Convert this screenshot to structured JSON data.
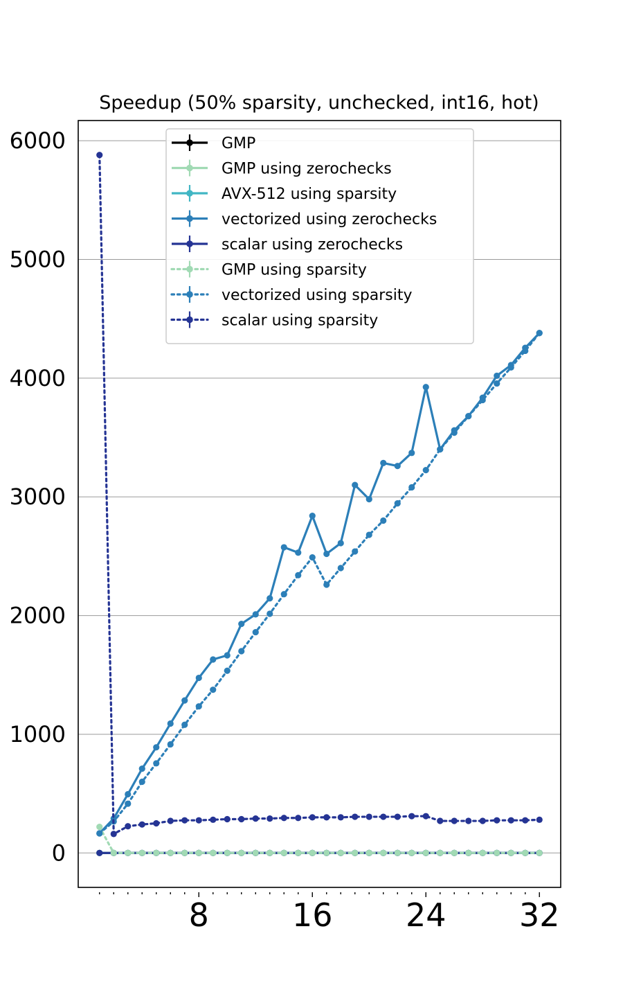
{
  "chart_data": {
    "type": "line",
    "title": "Speedup (50% sparsity, unchecked, int16, hot)",
    "xlabel": "",
    "ylabel": "",
    "xlim": [
      -0.5,
      33.5
    ],
    "ylim": [
      -290,
      6170
    ],
    "x": [
      1,
      2,
      3,
      4,
      5,
      6,
      7,
      8,
      9,
      10,
      11,
      12,
      13,
      14,
      15,
      16,
      17,
      18,
      19,
      20,
      21,
      22,
      23,
      24,
      25,
      26,
      27,
      28,
      29,
      30,
      31,
      32
    ],
    "xticks_major": [
      8,
      16,
      24,
      32
    ],
    "xticks_labels": [
      "8",
      "16",
      "24",
      "32"
    ],
    "yticks": [
      0,
      1000,
      2000,
      3000,
      4000,
      5000,
      6000
    ],
    "yticks_labels": [
      "0",
      "1000",
      "2000",
      "3000",
      "4000",
      "5000",
      "6000"
    ],
    "grid": "horizontal",
    "legend_position": "top-center",
    "series": [
      {
        "name": "GMP",
        "color": "#000000",
        "style": "solid",
        "values": [
          0,
          0,
          0,
          0,
          0,
          0,
          0,
          0,
          0,
          0,
          0,
          0,
          0,
          0,
          0,
          0,
          0,
          0,
          0,
          0,
          0,
          0,
          0,
          0,
          0,
          0,
          0,
          0,
          0,
          0,
          0,
          0
        ]
      },
      {
        "name": "GMP using zerochecks",
        "color": "#a1dab4",
        "style": "solid",
        "values": [
          0,
          0,
          0,
          0,
          0,
          0,
          0,
          0,
          0,
          0,
          0,
          0,
          0,
          0,
          0,
          0,
          0,
          0,
          0,
          0,
          0,
          0,
          0,
          0,
          0,
          0,
          0,
          0,
          0,
          0,
          0,
          0
        ]
      },
      {
        "name": "AVX-512 using sparsity",
        "color": "#41b6c4",
        "style": "solid",
        "values": [
          0,
          0,
          0,
          0,
          0,
          0,
          0,
          0,
          0,
          0,
          0,
          0,
          0,
          0,
          0,
          0,
          0,
          0,
          0,
          0,
          0,
          0,
          0,
          0,
          0,
          0,
          0,
          0,
          0,
          0,
          0,
          0
        ]
      },
      {
        "name": "vectorized using zerochecks",
        "color": "#2c7fb8",
        "style": "solid",
        "values": [
          165,
          290,
          495,
          710,
          890,
          1090,
          1285,
          1475,
          1630,
          1665,
          1930,
          2010,
          2145,
          2575,
          2530,
          2840,
          2520,
          2610,
          3100,
          2980,
          3285,
          3260,
          3370,
          3925,
          3400,
          3560,
          3680,
          3835,
          4020,
          4110,
          4255,
          4380
        ]
      },
      {
        "name": "scalar using zerochecks",
        "color": "#253494",
        "style": "solid",
        "values": [
          0,
          0,
          0,
          0,
          0,
          0,
          0,
          0,
          0,
          0,
          0,
          0,
          0,
          0,
          0,
          0,
          0,
          0,
          0,
          0,
          0,
          0,
          0,
          0,
          0,
          0,
          0,
          0,
          0,
          0,
          0,
          0
        ]
      },
      {
        "name": "GMP using sparsity",
        "color": "#a1dab4",
        "style": "dotted",
        "values": [
          220,
          0,
          0,
          0,
          0,
          0,
          0,
          0,
          0,
          0,
          0,
          0,
          0,
          0,
          0,
          0,
          0,
          0,
          0,
          0,
          0,
          0,
          0,
          0,
          0,
          0,
          0,
          0,
          0,
          0,
          0,
          0
        ]
      },
      {
        "name": "vectorized using sparsity",
        "color": "#2c7fb8",
        "style": "dotted",
        "values": [
          165,
          265,
          415,
          600,
          755,
          915,
          1080,
          1235,
          1375,
          1535,
          1700,
          1860,
          2015,
          2180,
          2340,
          2490,
          2260,
          2400,
          2540,
          2680,
          2800,
          2945,
          3080,
          3225,
          3400,
          3540,
          3680,
          3815,
          3955,
          4090,
          4230,
          4380
        ]
      },
      {
        "name": "scalar using sparsity",
        "color": "#253494",
        "style": "dotted",
        "values": [
          5880,
          160,
          225,
          240,
          250,
          270,
          275,
          275,
          280,
          285,
          285,
          290,
          290,
          295,
          295,
          300,
          300,
          300,
          305,
          305,
          305,
          305,
          310,
          310,
          270,
          270,
          270,
          270,
          275,
          275,
          275,
          280
        ]
      }
    ]
  }
}
